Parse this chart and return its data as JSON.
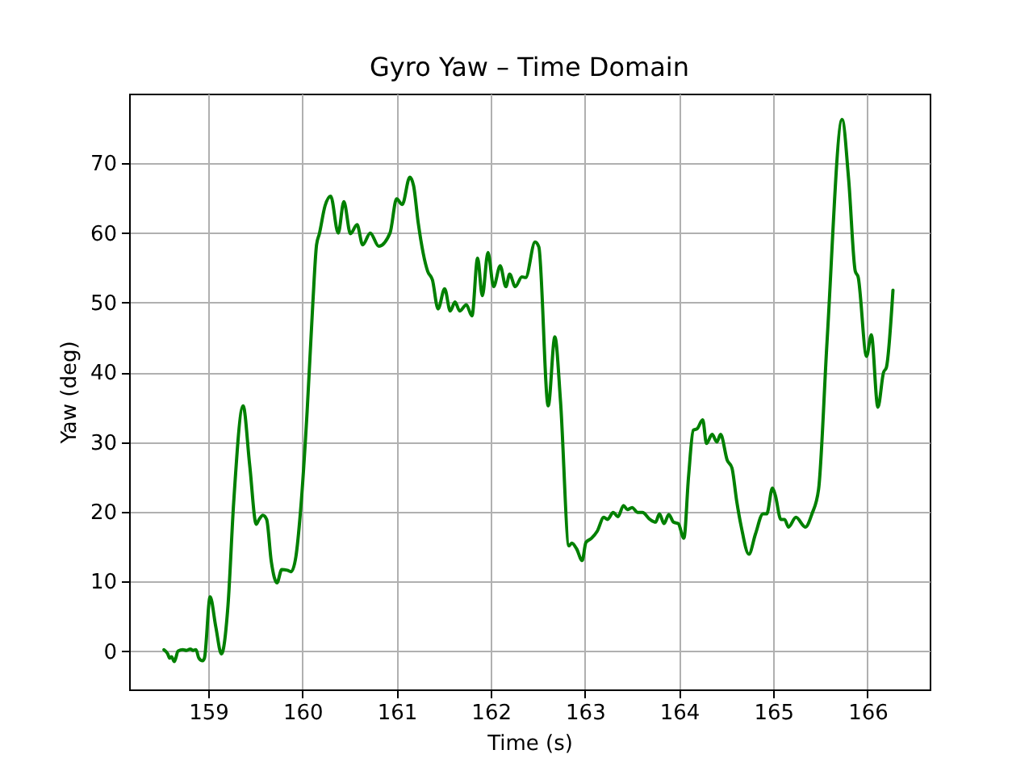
{
  "chart_data": {
    "type": "line",
    "title": "Gyro Yaw – Time Domain",
    "xlabel": "Time (s)",
    "ylabel": "Yaw (deg)",
    "x": [
      158.53,
      158.57,
      158.59,
      158.61,
      158.64,
      158.68,
      158.73,
      158.77,
      158.81,
      158.84,
      158.87,
      158.9,
      158.94,
      158.96,
      159.02,
      159.08,
      159.14,
      159.21,
      159.27,
      159.37,
      159.44,
      159.51,
      159.54,
      159.58,
      159.62,
      159.67,
      159.73,
      159.78,
      159.84,
      159.88,
      159.93,
      159.98,
      160.05,
      160.11,
      160.15,
      160.18,
      160.24,
      160.3,
      160.38,
      160.44,
      160.51,
      160.58,
      160.64,
      160.72,
      160.81,
      160.93,
      161.0,
      161.06,
      161.14,
      161.18,
      161.23,
      161.33,
      161.38,
      161.44,
      161.51,
      161.57,
      161.62,
      161.67,
      161.74,
      161.8,
      161.86,
      161.91,
      161.97,
      162.03,
      162.1,
      162.16,
      162.2,
      162.26,
      162.33,
      162.37,
      162.47,
      162.51,
      162.61,
      162.68,
      162.74,
      162.83,
      162.86,
      162.91,
      162.97,
      163.01,
      163.07,
      163.13,
      163.2,
      163.24,
      163.3,
      163.35,
      163.41,
      163.45,
      163.5,
      163.56,
      163.61,
      163.69,
      163.75,
      163.79,
      163.84,
      163.89,
      163.94,
      163.99,
      164.05,
      164.1,
      164.15,
      164.19,
      164.25,
      164.29,
      164.35,
      164.4,
      164.44,
      164.51,
      164.56,
      164.61,
      164.66,
      164.74,
      164.81,
      164.89,
      164.93,
      164.99,
      165.02,
      165.08,
      165.12,
      165.16,
      165.24,
      165.34,
      165.41,
      165.48,
      165.57,
      165.73,
      165.8,
      165.87,
      165.9,
      165.99,
      166.04,
      166.11,
      166.17,
      166.2,
      166.27
    ],
    "series": [
      {
        "color": "#008000",
        "values": [
          0.2,
          -0.4,
          -1.0,
          -0.8,
          -1.5,
          0.0,
          0.2,
          0.1,
          0.3,
          0.1,
          0.2,
          -1.0,
          -1.4,
          -1.0,
          7.8,
          3.5,
          -0.4,
          6.6,
          21.3,
          35.2,
          26.7,
          18.2,
          18.9,
          19.5,
          18.9,
          12.8,
          9.8,
          11.7,
          11.6,
          11.4,
          13.5,
          20.1,
          34.4,
          49.8,
          58.3,
          59.9,
          63.9,
          65.3,
          60.0,
          64.5,
          59.9,
          61.2,
          58.3,
          60.0,
          58.1,
          60.0,
          64.9,
          64.1,
          68.0,
          66.8,
          61.4,
          54.5,
          53.3,
          49.1,
          52.0,
          48.8,
          50.1,
          48.8,
          49.7,
          48.1,
          56.4,
          51.0,
          57.2,
          52.3,
          55.3,
          52.3,
          54.1,
          52.3,
          53.7,
          53.6,
          58.7,
          58.0,
          35.2,
          45.1,
          35.9,
          15.1,
          15.5,
          14.7,
          13.0,
          15.6,
          16.2,
          17.2,
          19.2,
          18.9,
          19.9,
          19.3,
          20.9,
          20.3,
          20.6,
          19.9,
          19.9,
          18.9,
          18.5,
          19.7,
          18.3,
          19.6,
          18.5,
          18.3,
          16.2,
          25.1,
          31.7,
          31.9,
          33.2,
          29.8,
          31.1,
          30.0,
          31.1,
          27.4,
          26.3,
          21.6,
          17.8,
          13.9,
          16.8,
          19.7,
          19.7,
          23.4,
          22.4,
          18.9,
          18.9,
          17.8,
          19.2,
          17.8,
          19.7,
          23.2,
          44.4,
          76.3,
          67.6,
          54.5,
          53.7,
          42.3,
          45.4,
          35.0,
          40.0,
          40.7,
          51.8
        ]
      }
    ],
    "xlim": [
      158.16,
      166.66
    ],
    "ylim": [
      -5.5,
      80
    ],
    "xticks": [
      159,
      160,
      161,
      162,
      163,
      164,
      165,
      166
    ],
    "yticks": [
      0,
      10,
      20,
      30,
      40,
      50,
      60,
      70
    ],
    "grid": true
  }
}
